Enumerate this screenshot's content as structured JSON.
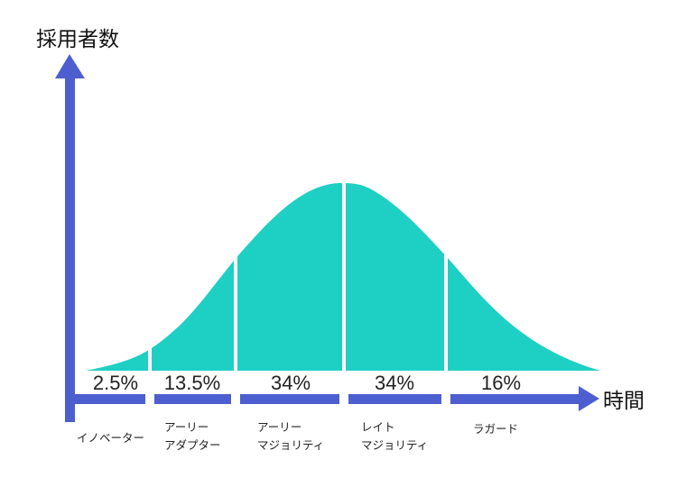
{
  "colors": {
    "axis": "#4d5fcf",
    "curve": "#1ecfc4",
    "divider": "#ffffff"
  },
  "axes": {
    "y_label": "採用者数",
    "x_label": "時間"
  },
  "segments": [
    {
      "percent_label": "2.5%",
      "category_lines": [
        "イノベーター"
      ]
    },
    {
      "percent_label": "13.5%",
      "category_lines": [
        "アーリー",
        "アダプター"
      ]
    },
    {
      "percent_label": "34%",
      "category_lines": [
        "アーリー",
        "マジョリティ"
      ]
    },
    {
      "percent_label": "34%",
      "category_lines": [
        "レイト",
        "マジョリティ"
      ]
    },
    {
      "percent_label": "16%",
      "category_lines": [
        "ラガード"
      ]
    }
  ]
}
